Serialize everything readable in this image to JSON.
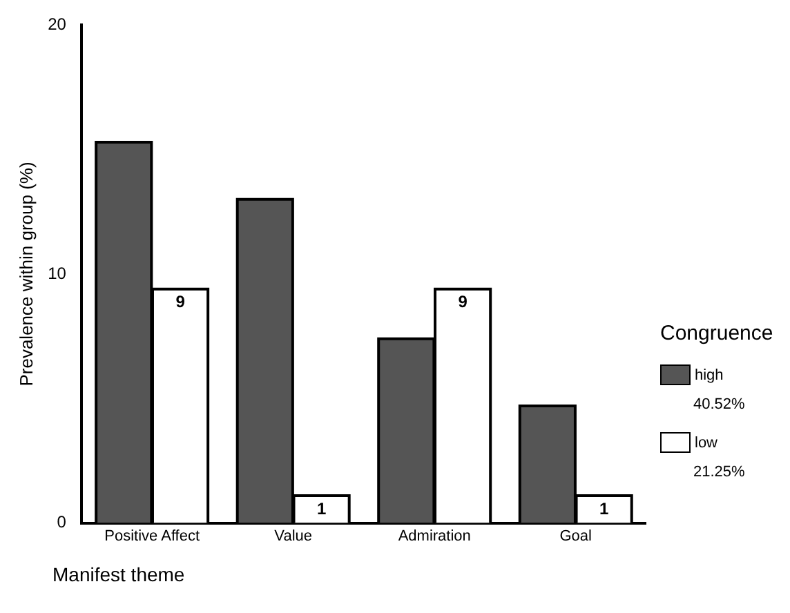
{
  "chart_data": {
    "type": "bar",
    "xlabel": "Manifest theme",
    "ylabel": "Prevalence within group (%)",
    "legend_title": "Congruence",
    "categories": [
      "Positive Affect",
      "Value",
      "Admiration",
      "Goal"
    ],
    "series": [
      {
        "name": "high",
        "color": "#555555",
        "values": [
          15.3,
          13.0,
          7.4,
          4.7
        ],
        "value_labels": [
          null,
          null,
          null,
          null
        ]
      },
      {
        "name": "low",
        "color": "#ffffff",
        "values": [
          9.4,
          1.1,
          9.4,
          1.1
        ],
        "value_labels": [
          "9",
          "1",
          "9",
          "1"
        ]
      }
    ],
    "annotations": [
      "40.52%",
      "21.25%"
    ],
    "ylim": [
      0,
      20
    ],
    "yticks": [
      0,
      10,
      20
    ],
    "grid": false,
    "legend": "right"
  }
}
